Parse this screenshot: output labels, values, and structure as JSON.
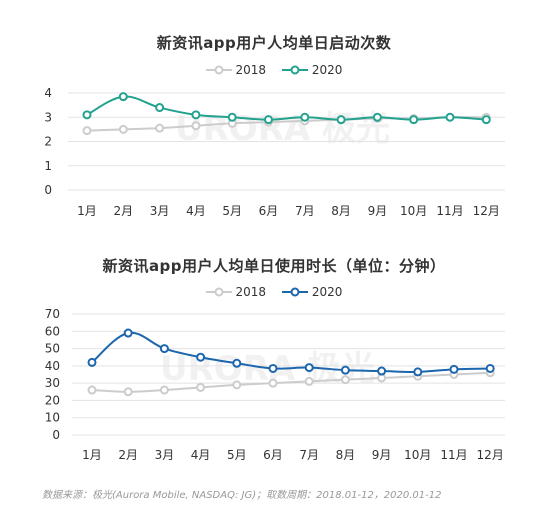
{
  "source_text": "数据来源：极光(Aurora Mobile, NASDAQ: JG)；取数周期：2018.01-12，2020.01-12",
  "watermark": "URORA 极光",
  "colors": {
    "c2018": "#cccccc",
    "chart1_2020": "#23a28f",
    "chart2_2020": "#1b66ad",
    "grid": "#e3e3e3",
    "axis_text": "#333333"
  },
  "chart_data": [
    {
      "type": "line",
      "title": "新资讯app用户人均单日启动次数",
      "categories": [
        "1月",
        "2月",
        "3月",
        "4月",
        "5月",
        "6月",
        "7月",
        "8月",
        "9月",
        "10月",
        "11月",
        "12月"
      ],
      "yticks": [
        "0",
        "1",
        "2",
        "3",
        "4"
      ],
      "ylim": [
        0,
        4
      ],
      "grid": true,
      "legend": "top-center",
      "series": [
        {
          "name": "2018",
          "values": [
            2.45,
            2.5,
            2.55,
            2.65,
            2.75,
            2.8,
            2.85,
            2.9,
            2.95,
            2.95,
            3.0,
            3.0
          ]
        },
        {
          "name": "2020",
          "values": [
            3.1,
            3.85,
            3.4,
            3.1,
            3.0,
            2.9,
            3.0,
            2.9,
            3.0,
            2.9,
            3.0,
            2.9
          ]
        }
      ]
    },
    {
      "type": "line",
      "title": "新资讯app用户人均单日使用时长（单位：分钟）",
      "categories": [
        "1月",
        "2月",
        "3月",
        "4月",
        "5月",
        "6月",
        "7月",
        "8月",
        "9月",
        "10月",
        "11月",
        "12月"
      ],
      "yticks": [
        "0",
        "10",
        "20",
        "30",
        "40",
        "50",
        "60",
        "70"
      ],
      "ylim": [
        0,
        70
      ],
      "grid": true,
      "legend": "top-center",
      "series": [
        {
          "name": "2018",
          "values": [
            26,
            25,
            26,
            27.5,
            29,
            30,
            31,
            32,
            33,
            34,
            35,
            36
          ]
        },
        {
          "name": "2020",
          "values": [
            42,
            59,
            50,
            45,
            41.5,
            38.5,
            39,
            37.5,
            37,
            36.5,
            38,
            38.5
          ]
        }
      ]
    }
  ]
}
